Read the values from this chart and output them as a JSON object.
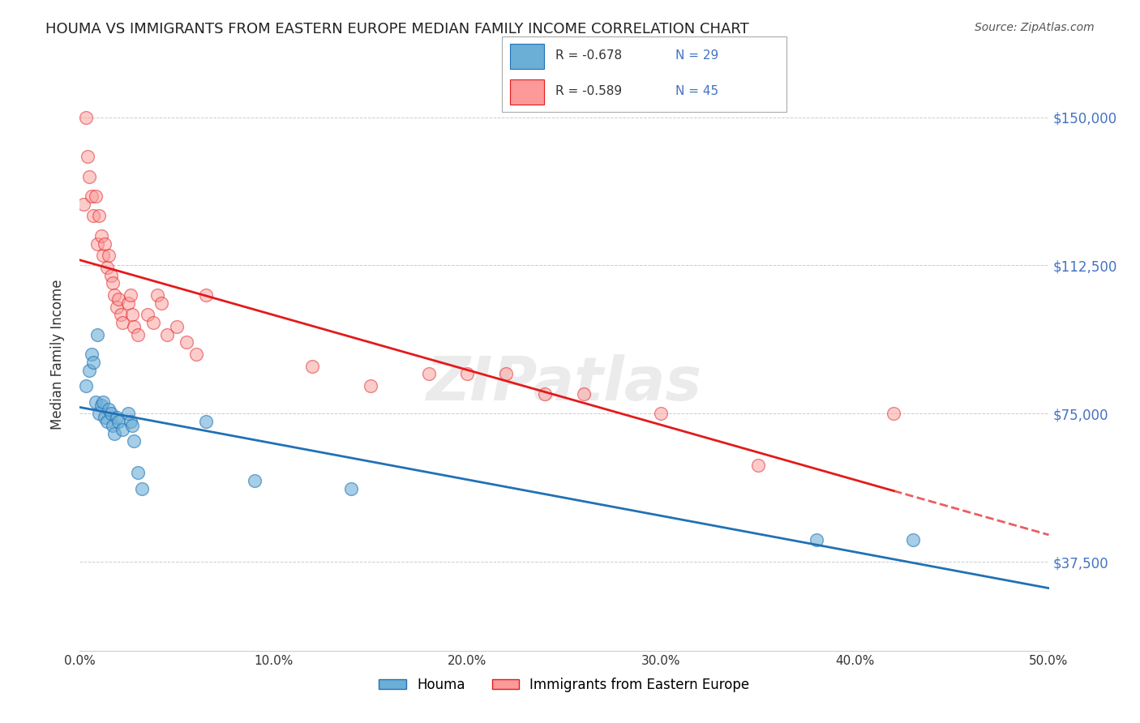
{
  "title": "HOUMA VS IMMIGRANTS FROM EASTERN EUROPE MEDIAN FAMILY INCOME CORRELATION CHART",
  "source": "Source: ZipAtlas.com",
  "ylabel": "Median Family Income",
  "y_ticks": [
    37500,
    75000,
    112500,
    150000
  ],
  "y_tick_labels": [
    "$37,500",
    "$75,000",
    "$112,500",
    "$150,000"
  ],
  "xlim": [
    0.0,
    0.5
  ],
  "ylim": [
    15000,
    165000
  ],
  "legend_blue_r": "-0.678",
  "legend_blue_n": "29",
  "legend_pink_r": "-0.589",
  "legend_pink_n": "45",
  "blue_color": "#6baed6",
  "pink_color": "#fb9a99",
  "blue_line_color": "#2171b5",
  "pink_line_color": "#e31a1c",
  "watermark": "ZIPatlas",
  "blue_points": [
    [
      0.003,
      82000
    ],
    [
      0.005,
      86000
    ],
    [
      0.006,
      90000
    ],
    [
      0.007,
      88000
    ],
    [
      0.008,
      78000
    ],
    [
      0.009,
      95000
    ],
    [
      0.01,
      75000
    ],
    [
      0.011,
      77000
    ],
    [
      0.012,
      78000
    ],
    [
      0.013,
      74000
    ],
    [
      0.014,
      73000
    ],
    [
      0.015,
      76000
    ],
    [
      0.016,
      75000
    ],
    [
      0.017,
      72000
    ],
    [
      0.018,
      70000
    ],
    [
      0.019,
      74000
    ],
    [
      0.02,
      73000
    ],
    [
      0.022,
      71000
    ],
    [
      0.025,
      75000
    ],
    [
      0.026,
      73000
    ],
    [
      0.027,
      72000
    ],
    [
      0.028,
      68000
    ],
    [
      0.03,
      60000
    ],
    [
      0.032,
      56000
    ],
    [
      0.065,
      73000
    ],
    [
      0.09,
      58000
    ],
    [
      0.14,
      56000
    ],
    [
      0.38,
      43000
    ],
    [
      0.43,
      43000
    ]
  ],
  "pink_points": [
    [
      0.002,
      128000
    ],
    [
      0.003,
      150000
    ],
    [
      0.004,
      140000
    ],
    [
      0.005,
      135000
    ],
    [
      0.006,
      130000
    ],
    [
      0.007,
      125000
    ],
    [
      0.008,
      130000
    ],
    [
      0.009,
      118000
    ],
    [
      0.01,
      125000
    ],
    [
      0.011,
      120000
    ],
    [
      0.012,
      115000
    ],
    [
      0.013,
      118000
    ],
    [
      0.014,
      112000
    ],
    [
      0.015,
      115000
    ],
    [
      0.016,
      110000
    ],
    [
      0.017,
      108000
    ],
    [
      0.018,
      105000
    ],
    [
      0.019,
      102000
    ],
    [
      0.02,
      104000
    ],
    [
      0.021,
      100000
    ],
    [
      0.022,
      98000
    ],
    [
      0.025,
      103000
    ],
    [
      0.026,
      105000
    ],
    [
      0.027,
      100000
    ],
    [
      0.028,
      97000
    ],
    [
      0.03,
      95000
    ],
    [
      0.035,
      100000
    ],
    [
      0.038,
      98000
    ],
    [
      0.04,
      105000
    ],
    [
      0.042,
      103000
    ],
    [
      0.045,
      95000
    ],
    [
      0.05,
      97000
    ],
    [
      0.055,
      93000
    ],
    [
      0.06,
      90000
    ],
    [
      0.065,
      105000
    ],
    [
      0.12,
      87000
    ],
    [
      0.15,
      82000
    ],
    [
      0.18,
      85000
    ],
    [
      0.2,
      85000
    ],
    [
      0.22,
      85000
    ],
    [
      0.24,
      80000
    ],
    [
      0.26,
      80000
    ],
    [
      0.3,
      75000
    ],
    [
      0.35,
      62000
    ],
    [
      0.42,
      75000
    ]
  ]
}
